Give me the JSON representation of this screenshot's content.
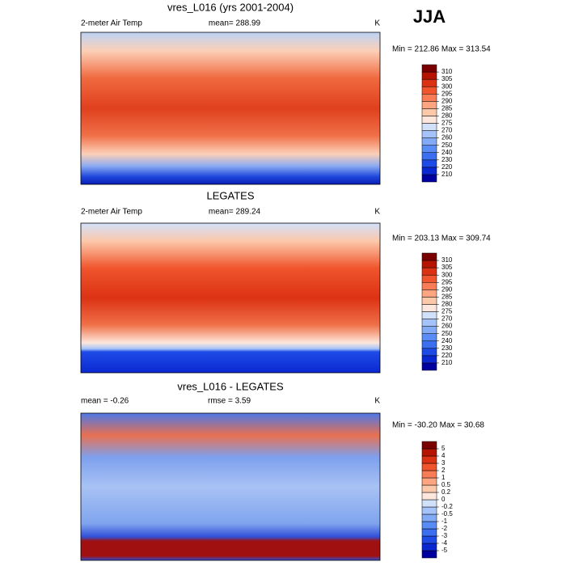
{
  "title": "JJA",
  "panels": [
    {
      "title": "vres_L016 (yrs 2001-2004)",
      "left_label": "2-meter Air Temp",
      "center_label": "mean= 288.99",
      "units": "K",
      "min_max": "Min = 212.86 Max = 313.54",
      "colorbar": {
        "levels": [
          210,
          220,
          230,
          240,
          250,
          260,
          270,
          275,
          280,
          285,
          290,
          295,
          300,
          305,
          310
        ],
        "colors": [
          "#0000a0",
          "#0a28d2",
          "#1e4be6",
          "#3c6ef0",
          "#5a8cf5",
          "#82aaf5",
          "#a5c3f8",
          "#d2e1fa",
          "#fde7dc",
          "#fcc8aa",
          "#fca580",
          "#f87c55",
          "#f0552d",
          "#dc3214",
          "#b41400",
          "#7a0000"
        ]
      }
    },
    {
      "title": "LEGATES",
      "left_label": "2-meter Air Temp",
      "center_label": "mean= 289.24",
      "units": "K",
      "min_max": "Min = 203.13 Max = 309.74",
      "colorbar": {
        "levels": [
          210,
          220,
          230,
          240,
          250,
          260,
          270,
          275,
          280,
          285,
          290,
          295,
          300,
          305,
          310
        ],
        "colors": [
          "#0000a0",
          "#0a28d2",
          "#1e4be6",
          "#3c6ef0",
          "#5a8cf5",
          "#82aaf5",
          "#a5c3f8",
          "#d2e1fa",
          "#fde7dc",
          "#fcc8aa",
          "#fca580",
          "#f87c55",
          "#f0552d",
          "#dc3214",
          "#b41400",
          "#7a0000"
        ]
      }
    },
    {
      "title": "vres_L016 - LEGATES",
      "left_label": "mean =  -0.26",
      "center_label": "rmse =   3.59",
      "units": "K",
      "min_max": "Min = -30.20 Max =  30.68",
      "colorbar": {
        "levels": [
          -5,
          -4,
          -3,
          -2,
          -1,
          -0.5,
          -0.2,
          0,
          0.2,
          0.5,
          1,
          2,
          3,
          4,
          5
        ],
        "colors": [
          "#0000a0",
          "#0a28d2",
          "#1e4be6",
          "#3c6ef0",
          "#5a8cf5",
          "#82aaf5",
          "#a5c3f8",
          "#d2e1fa",
          "#fde7dc",
          "#fcc8aa",
          "#fca580",
          "#f87c55",
          "#f0552d",
          "#dc3214",
          "#b41400",
          "#7a0000"
        ]
      }
    }
  ]
}
